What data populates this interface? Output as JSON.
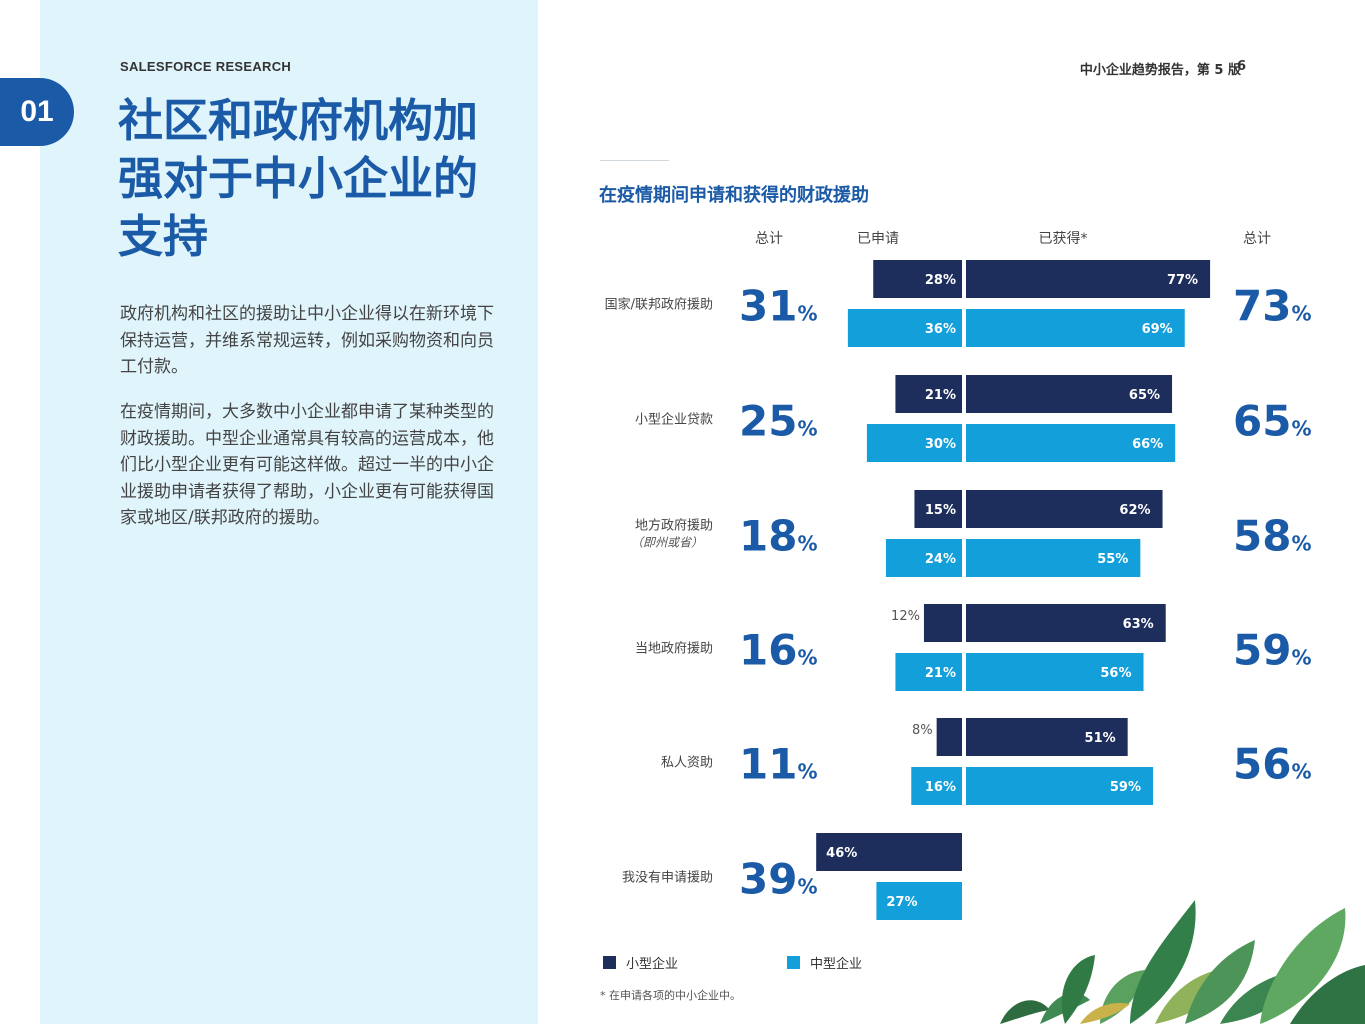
{
  "header": {
    "research_label": "SALESFORCE RESEARCH",
    "report_title": "中小企业趋势报告，第 5 版",
    "page_number": "6"
  },
  "chapter": {
    "number": "01"
  },
  "page_title": "社区和政府机构加强对于中小企业的支持",
  "body": {
    "p1": "政府机构和社区的援助让中小企业得以在新环境下保持运营，并维系常规运转，例如采购物资和向员工付款。",
    "p2": "在疫情期间，大多数中小企业都申请了某种类型的财政援助。中型企业通常具有较高的运营成本，他们比小型企业更有可能这样做。超过一半的中小企业援助申请者获得了帮助，小企业更有可能获得国家或地区/联邦政府的援助。"
  },
  "colors": {
    "small": "#1d2d5c",
    "medium": "#139fda",
    "accent": "#1b5aa6"
  },
  "chart_data": {
    "type": "bar",
    "title": "在疫情期间申请和获得的财政援助",
    "column_headers": {
      "total_applied": "总计",
      "applied": "已申请",
      "received": "已获得*",
      "total_received": "总计"
    },
    "categories": [
      {
        "label": "国家/联邦政府援助",
        "sublabel": ""
      },
      {
        "label": "小型企业贷款",
        "sublabel": ""
      },
      {
        "label": "地方政府援助",
        "sublabel": "（即州或省）"
      },
      {
        "label": "当地政府援助",
        "sublabel": ""
      },
      {
        "label": "私人资助",
        "sublabel": ""
      },
      {
        "label": "我没有申请援助",
        "sublabel": ""
      }
    ],
    "series": [
      {
        "name": "小型企业",
        "applied": [
          28,
          21,
          15,
          12,
          8,
          46
        ],
        "received": [
          77,
          65,
          62,
          63,
          51,
          null
        ]
      },
      {
        "name": "中型企业",
        "applied": [
          36,
          30,
          24,
          21,
          16,
          27
        ],
        "received": [
          69,
          66,
          55,
          56,
          59,
          null
        ]
      }
    ],
    "total_applied": [
      31,
      25,
      18,
      16,
      11,
      39
    ],
    "total_received": [
      73,
      65,
      58,
      59,
      56,
      null
    ],
    "legend_position": "bottom-left",
    "footnote": "* 在申请各项的中小企业中。"
  }
}
